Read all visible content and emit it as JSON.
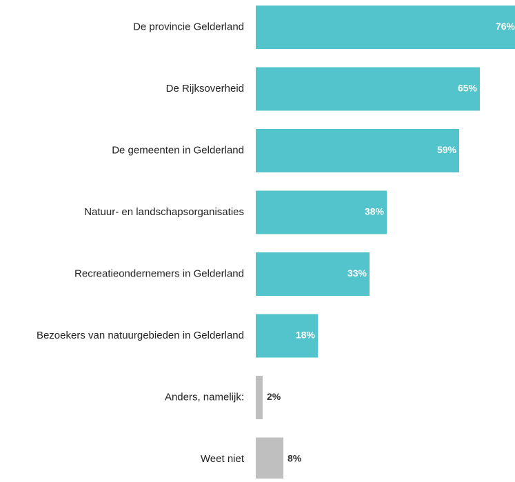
{
  "chart_data": {
    "type": "bar",
    "orientation": "horizontal",
    "categories": [
      "De provincie Gelderland",
      "De Rijksoverheid",
      "De gemeenten in Gelderland",
      "Natuur- en landschapsorganisaties",
      "Recreatieondernemers in Gelderland",
      "Bezoekers van natuurgebieden in Gelderland",
      "Anders, namelijk:",
      "Weet niet"
    ],
    "values": [
      76,
      65,
      59,
      38,
      33,
      18,
      2,
      8
    ],
    "value_labels": [
      "76%",
      "65%",
      "59%",
      "38%",
      "33%",
      "18%",
      "2%",
      "8%"
    ],
    "xlim": [
      0,
      100
    ],
    "grid": false,
    "legend": "none",
    "colors": {
      "primary": "#53C4CB",
      "secondary": "#BFBFBF",
      "label_on_bar": "#FFFFFF",
      "label_outside": "#333333",
      "category_text": "#222222"
    },
    "bar_color_by_index": [
      "primary",
      "primary",
      "primary",
      "primary",
      "primary",
      "primary",
      "secondary",
      "secondary"
    ],
    "label_color_by_index": [
      "label_on_bar",
      "label_on_bar",
      "label_on_bar",
      "label_on_bar",
      "label_on_bar",
      "label_on_bar",
      "label_outside",
      "label_outside"
    ]
  }
}
